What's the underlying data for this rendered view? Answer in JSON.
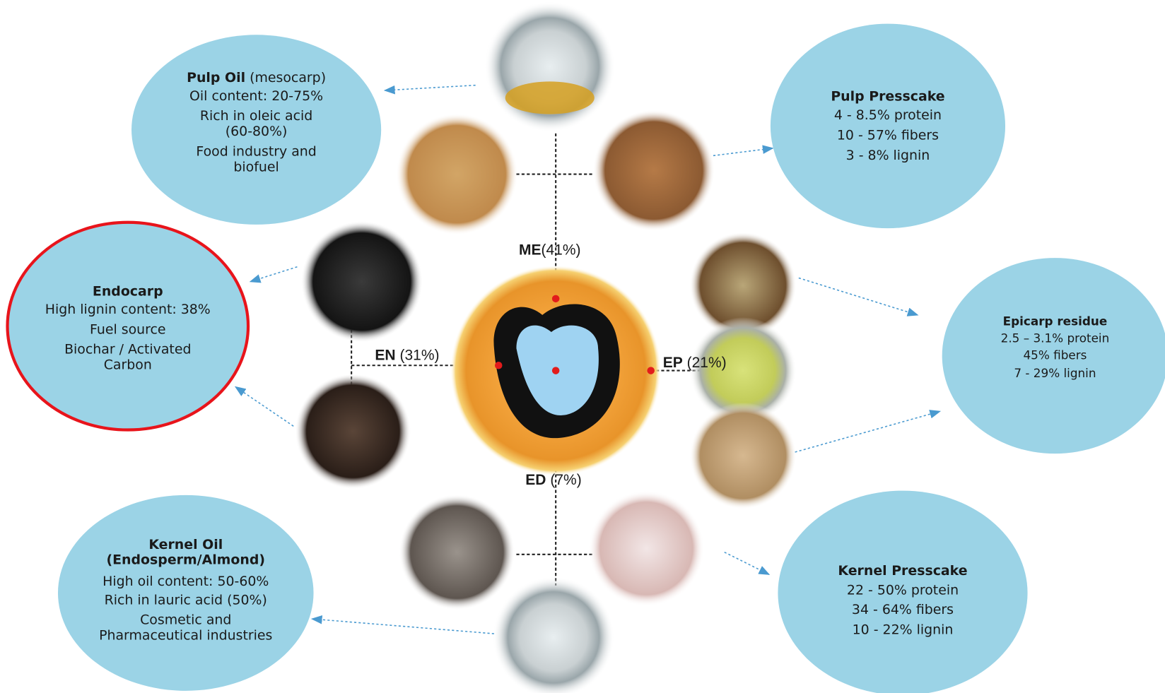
{
  "nodes": [
    {
      "title": "Pulp Oil",
      "title_note": "(mesocarp)",
      "lines": [
        "Oil content: 20-75%",
        "Rich in oleic acid",
        "(60-80%)",
        "Food industry and",
        "biofuel"
      ]
    },
    {
      "title": "Pulp Presscake",
      "lines": [
        "4 - 8.5% protein",
        "10 - 57% fibers",
        "3 - 8% lignin"
      ]
    },
    {
      "title": "Endocarp",
      "lines": [
        "High lignin content: 38%",
        "Fuel source",
        "Biochar / Activated",
        "Carbon"
      ]
    },
    {
      "title": "Epicarp residue",
      "lines": [
        "2.5 – 3.1% protein",
        "45% fibers",
        "7 - 29% lignin"
      ]
    },
    {
      "title": "Kernel Oil",
      "subtitle": "(Endosperm/Almond)",
      "lines": [
        "High oil content: 50-60%",
        "Rich in lauric acid (50%)",
        "Cosmetic and",
        "Pharmaceutical industries"
      ]
    },
    {
      "title": "Kernel Presscake",
      "lines": [
        "22 - 50% protein",
        "34 - 64% fibers",
        "10 - 22% lignin"
      ]
    }
  ],
  "parts": [
    {
      "abbr": "ME",
      "share": "(41%)"
    },
    {
      "abbr": "EN",
      "share": "(31%)"
    },
    {
      "abbr": "EP",
      "share": "(21%)"
    },
    {
      "abbr": "ED",
      "share": "(7%)"
    }
  ]
}
